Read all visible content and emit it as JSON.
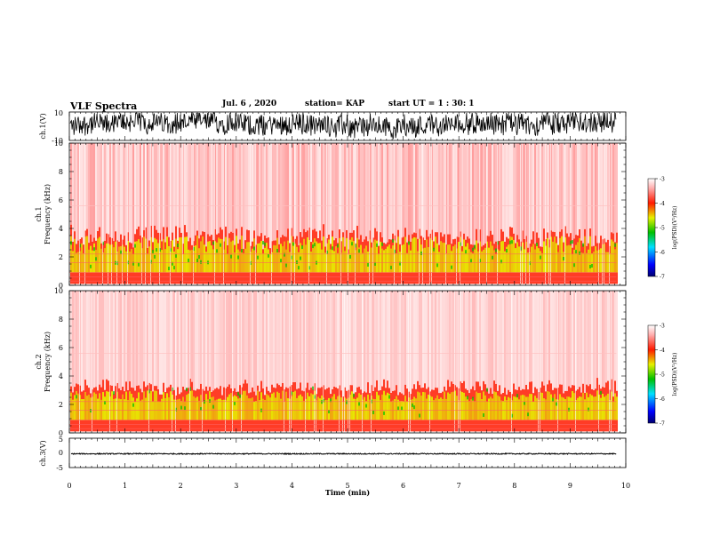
{
  "header": {
    "title": "VLF Spectra",
    "date": "Jul. 6 , 2020",
    "station": "station= KAP",
    "start": "start UT = 1 : 30: 1"
  },
  "chart_data": [
    {
      "type": "line",
      "name": "ch1-waveform",
      "ylabel": "ch.1(V)",
      "ylim": [
        -10,
        10
      ],
      "yticks": [
        "10",
        "-10"
      ],
      "xlim": [
        0,
        10
      ]
    },
    {
      "type": "heatmap",
      "name": "ch1-spectrogram",
      "ylabel_top": "ch.1",
      "ylabel": "Frequency (kHz)",
      "ylim": [
        0,
        10
      ],
      "yticks": [
        "0",
        "2",
        "4",
        "6",
        "8",
        "10"
      ],
      "xlim": [
        0,
        10
      ],
      "data_end_min": 9.83,
      "colorbar": {
        "label": "log(PSD)(V²/Hz)",
        "range": [
          -7,
          -3
        ],
        "ticks": [
          "-3",
          "-4",
          "-5",
          "-6",
          "-7"
        ]
      }
    },
    {
      "type": "heatmap",
      "name": "ch2-spectrogram",
      "ylabel_top": "ch.2",
      "ylabel": "Frequency (kHz)",
      "ylim": [
        0,
        10
      ],
      "yticks": [
        "0",
        "2",
        "4",
        "6",
        "8",
        "10"
      ],
      "xlim": [
        0,
        10
      ],
      "data_end_min": 9.83,
      "colorbar": {
        "label": "log(PSD)(V²/Hz)",
        "range": [
          -7,
          -3
        ],
        "ticks": [
          "-3",
          "-4",
          "-5",
          "-6",
          "-7"
        ]
      }
    },
    {
      "type": "line",
      "name": "ch3-waveform",
      "ylabel": "ch.3(V)",
      "ylim": [
        -5,
        5
      ],
      "yticks": [
        "5",
        "0",
        "-5"
      ],
      "xlim": [
        0,
        10
      ]
    }
  ],
  "xaxis": {
    "label": "Time (min)",
    "ticks": [
      "0",
      "1",
      "2",
      "3",
      "4",
      "5",
      "6",
      "7",
      "8",
      "9",
      "10"
    ]
  },
  "colors": {
    "trace": "#000000",
    "spec_low": "#ffffff",
    "spec_mid": "#ff2020",
    "spec_high": "#e6f000",
    "spec_peak": "#00c000"
  }
}
